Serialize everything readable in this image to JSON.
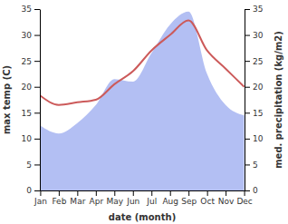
{
  "chart_data": {
    "type": "line",
    "categories": [
      "Jan",
      "Feb",
      "Mar",
      "Apr",
      "May",
      "Jun",
      "Jul",
      "Aug",
      "Sep",
      "Oct",
      "Nov",
      "Dec"
    ],
    "x_label": "date (month)",
    "y_label": "max temp (C)",
    "y2_label": "med. precipitation (kg/m2)",
    "series": [
      {
        "name": "max temp",
        "type": "line",
        "color": "#cc5a5a",
        "values": [
          18.3,
          16.5,
          17,
          17.5,
          20.5,
          23,
          27,
          30,
          32.8,
          27,
          23.5,
          20
        ]
      },
      {
        "name": "med. precipitation",
        "type": "area",
        "axis": "y2",
        "color": "#b3bff3",
        "values": [
          12.5,
          11,
          13,
          16.5,
          21.5,
          21,
          26.5,
          32,
          34.5,
          22.5,
          16.5,
          14.5
        ]
      }
    ],
    "ylim": [
      0,
      35
    ],
    "yticks": [
      0,
      5,
      10,
      15,
      20,
      25,
      30,
      35
    ],
    "y2lim": [
      0,
      35
    ],
    "y2ticks": [
      0,
      5,
      10,
      15,
      20,
      25,
      30,
      35
    ]
  }
}
